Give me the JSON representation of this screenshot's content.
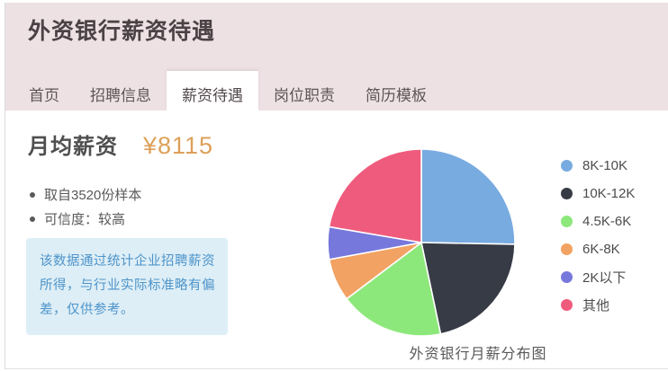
{
  "header": {
    "title": "外资银行薪资待遇"
  },
  "nav": {
    "tabs": [
      {
        "label": "首页"
      },
      {
        "label": "招聘信息"
      },
      {
        "label": "薪资待遇"
      },
      {
        "label": "岗位职责"
      },
      {
        "label": "简历模板"
      }
    ],
    "active_tab": "薪资待遇"
  },
  "salary": {
    "label": "月均薪资",
    "amount": "¥8115",
    "amount_color": "#dda05a",
    "bullets": [
      "取自3520份样本",
      "可信度：较高"
    ],
    "note": "该数据通过统计企业招聘薪资所得，与行业实际标准略有偏差，仅供参考。"
  },
  "chart_data": {
    "type": "pie",
    "title": "外资银行月薪分布图",
    "legend_position": "right",
    "slices": [
      {
        "label": "8K-10K",
        "value": 25.3,
        "color": "#78abe0"
      },
      {
        "label": "10K-12K",
        "value": 21.4,
        "color": "#373b45"
      },
      {
        "label": "4.5K-6K",
        "value": 18.0,
        "color": "#8de87b"
      },
      {
        "label": "6K-8K",
        "value": 7.4,
        "color": "#f2a262"
      },
      {
        "label": "2K以下",
        "value": 5.6,
        "color": "#7678dc"
      },
      {
        "label": "其他",
        "value": 22.3,
        "color": "#ef5b7d"
      }
    ]
  },
  "colors": {
    "header_bg": "#ede1e4",
    "note_bg": "#ddeef6",
    "note_text": "#4e94ca"
  }
}
